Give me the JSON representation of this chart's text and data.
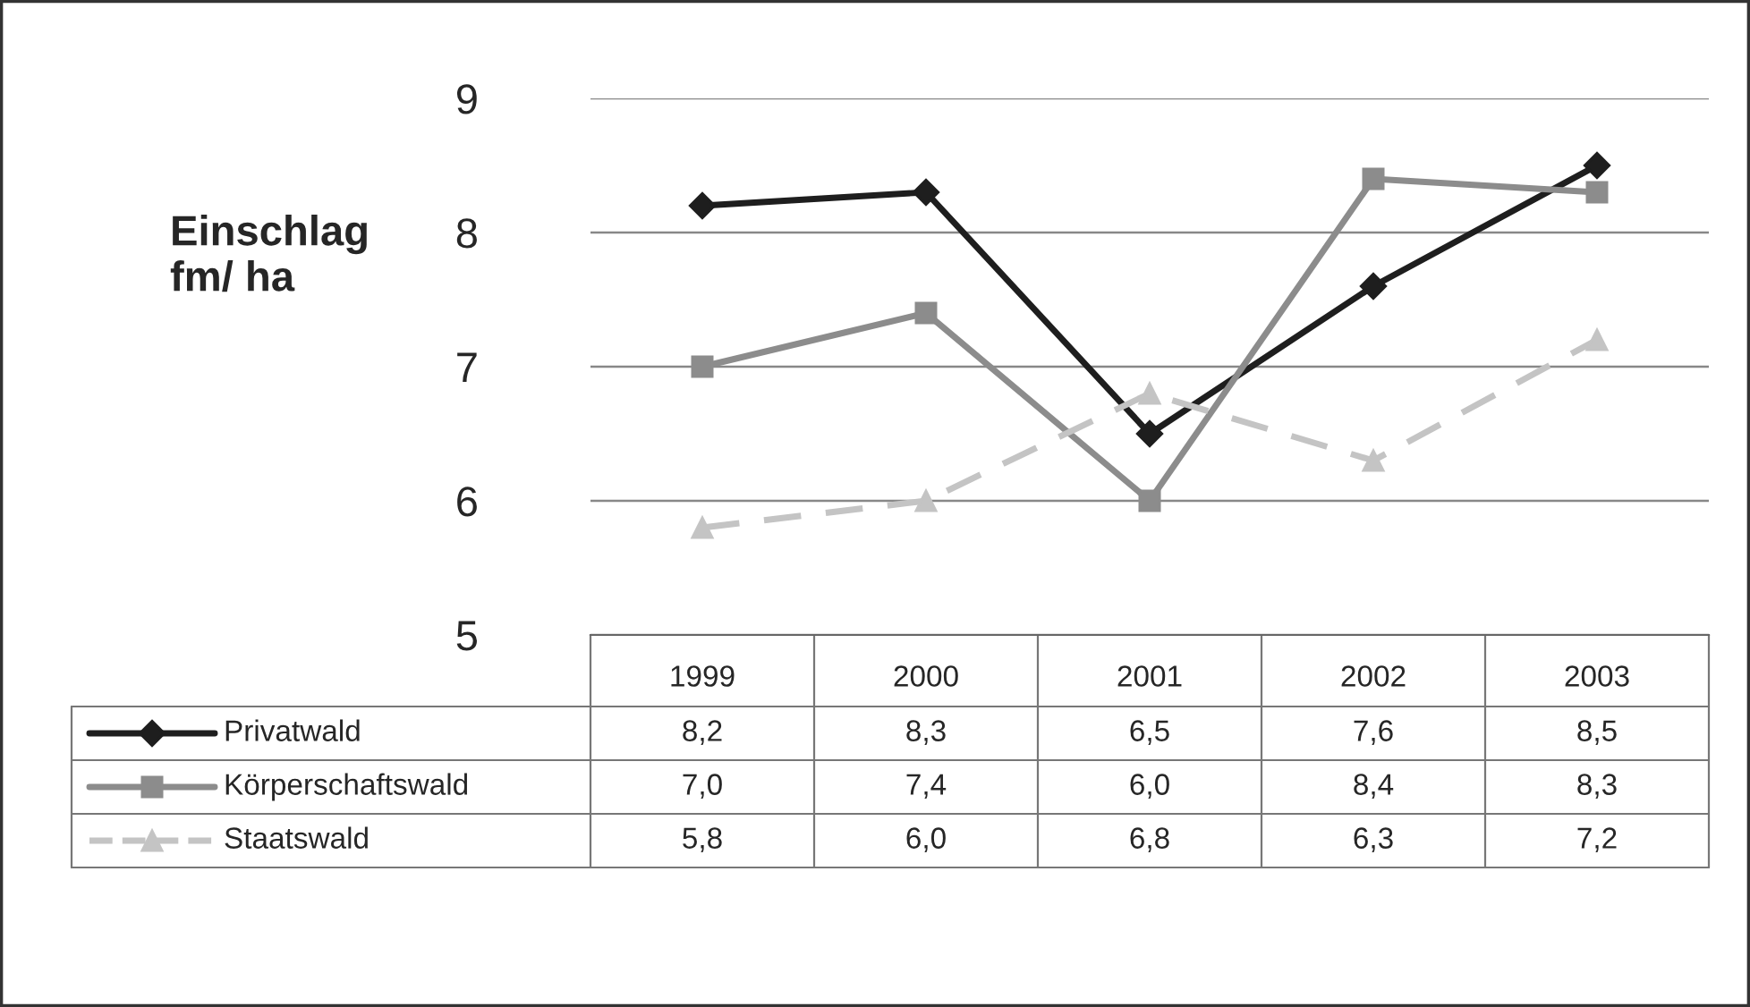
{
  "chart_data": {
    "type": "line",
    "ylabel": "Einschlag\nfm/ ha",
    "categories": [
      "1999",
      "2000",
      "2001",
      "2002",
      "2003"
    ],
    "series": [
      {
        "name": "Privatwald",
        "color": "#1e1e1e",
        "values": [
          8.2,
          8.3,
          6.5,
          7.6,
          8.5
        ],
        "value_labels": [
          "8,2",
          "8,3",
          "6,5",
          "7,6",
          "8,5"
        ],
        "marker": "diamond",
        "line_style": "solid"
      },
      {
        "name": "Körperschaftswald",
        "color": "#8c8c8c",
        "values": [
          7.0,
          7.4,
          6.0,
          8.4,
          8.3
        ],
        "value_labels": [
          "7,0",
          "7,4",
          "6,0",
          "8,4",
          "8,3"
        ],
        "marker": "square",
        "line_style": "solid"
      },
      {
        "name": "Staatswald",
        "color": "#c4c4c4",
        "values": [
          5.8,
          6.0,
          6.8,
          6.3,
          7.2
        ],
        "value_labels": [
          "5,8",
          "6,0",
          "6,8",
          "6,3",
          "7,2"
        ],
        "marker": "triangle",
        "line_style": "dashed"
      }
    ],
    "ylim": [
      5,
      9
    ],
    "yticks": [
      5,
      6,
      7,
      8,
      9
    ],
    "grid": "y",
    "legend": "bottom"
  }
}
